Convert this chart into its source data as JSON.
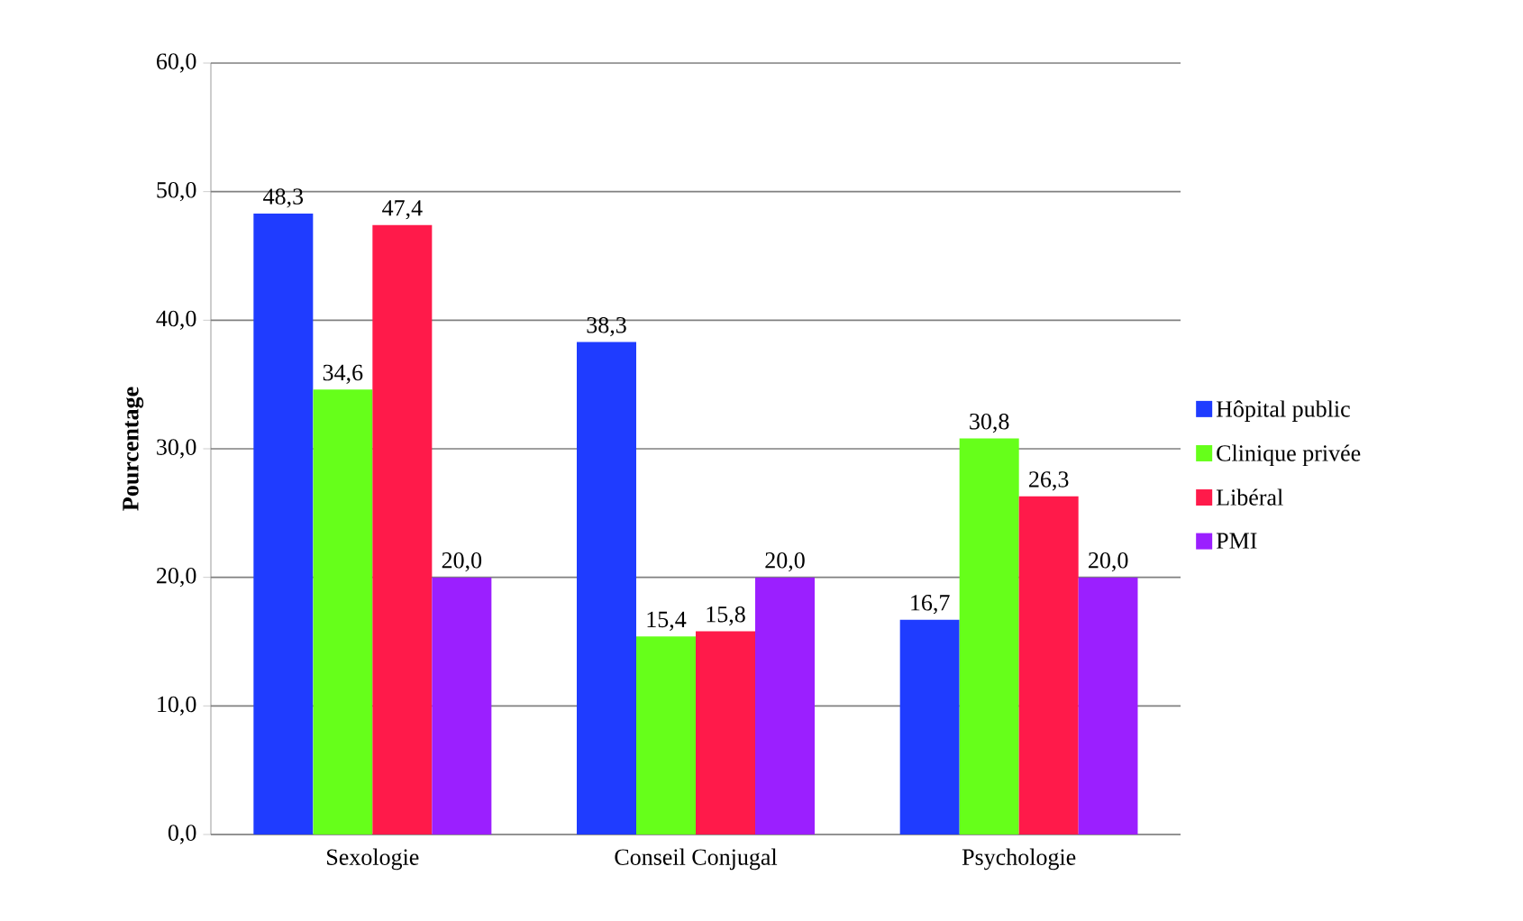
{
  "chart_data": {
    "type": "bar",
    "ylabel": "Pourcentage",
    "categories": [
      "Sexologie",
      "Conseil Conjugal",
      "Psychologie"
    ],
    "series": [
      {
        "name": "Hôpital public",
        "color": "#1f3cff",
        "values": [
          48.3,
          38.3,
          16.7
        ],
        "value_labels": [
          "48,3",
          "38,3",
          "16,7"
        ]
      },
      {
        "name": "Clinique privée",
        "color": "#66ff1a",
        "values": [
          34.6,
          15.4,
          30.8
        ],
        "value_labels": [
          "34,6",
          "15,4",
          "30,8"
        ]
      },
      {
        "name": "Libéral",
        "color": "#ff1a4a",
        "values": [
          47.4,
          15.8,
          26.3
        ],
        "value_labels": [
          "47,4",
          "15,8",
          "26,3"
        ]
      },
      {
        "name": "PMI",
        "color": "#9b1fff",
        "values": [
          20.0,
          20.0,
          20.0
        ],
        "value_labels": [
          "20,0",
          "20,0",
          "20,0"
        ]
      }
    ],
    "ylim": [
      0,
      60
    ],
    "yticks": [
      {
        "value": 0,
        "label": "0,0"
      },
      {
        "value": 10,
        "label": "10,0"
      },
      {
        "value": 20,
        "label": "20,0"
      },
      {
        "value": 30,
        "label": "30,0"
      },
      {
        "value": 40,
        "label": "40,0"
      },
      {
        "value": 50,
        "label": "50,0"
      },
      {
        "value": 60,
        "label": "60,0"
      }
    ],
    "grid": "y",
    "legend": "right"
  }
}
